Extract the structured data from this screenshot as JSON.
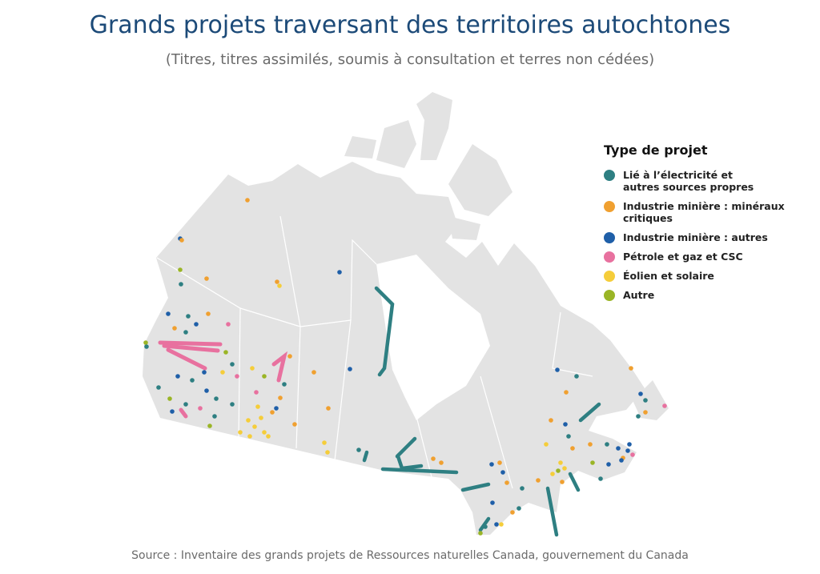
{
  "header": {
    "title": "Grands projets traversant des territoires autochtones",
    "subtitle": "(Titres, titres assimilés, soumis à consultation et terres non cédées)"
  },
  "legend": {
    "title": "Type de projet",
    "items": [
      {
        "label": "Lié à l’électricité et autres sources propres",
        "color": "#2e7f82"
      },
      {
        "label": "Industrie minière : minéraux critiques",
        "color": "#f0a030"
      },
      {
        "label": "Industrie minière : autres",
        "color": "#1f5fa8"
      },
      {
        "label": "Pétrole et gaz et CSC",
        "color": "#e8719f"
      },
      {
        "label": "Éolien et solaire",
        "color": "#f5cd3a"
      },
      {
        "label": "Autre",
        "color": "#9ab526"
      }
    ]
  },
  "footer": {
    "source": "Source : Inventaire des grands projets de Ressources naturelles Canada, gouvernement du Canada"
  }
}
